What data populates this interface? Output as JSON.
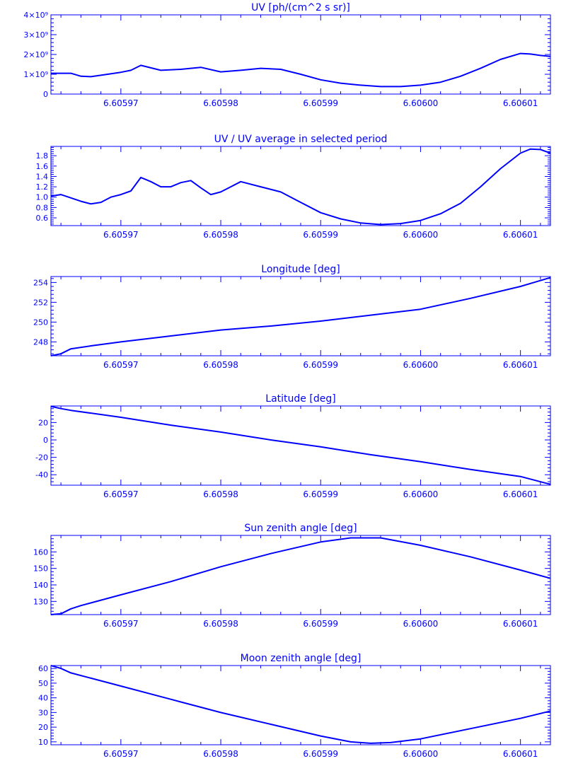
{
  "colors": {
    "line": "#0000ff",
    "background": "#ffffff"
  },
  "chart_data": [
    {
      "type": "line",
      "title": "UV [ph/(cm^2 s sr)]",
      "xlabel": "",
      "ylabel": "",
      "xlim": [
        6.605963,
        6.606013
      ],
      "ylim": [
        0,
        4.0
      ],
      "y_scale_note": "×10^9",
      "xticks": [
        6.60597,
        6.60598,
        6.60599,
        6.606,
        6.60601
      ],
      "xtick_labels": [
        "6.60597",
        "6.60598",
        "6.60599",
        "6.60600",
        "6.60601"
      ],
      "yticks": [
        0,
        1,
        2,
        3,
        4
      ],
      "ytick_labels": [
        "0",
        "1×10⁹",
        "2×10⁹",
        "3×10⁹",
        "4×10⁹"
      ],
      "series": [
        {
          "x": [
            6.605963,
            6.605965,
            6.605966,
            6.605967,
            6.605968,
            6.60597,
            6.605971,
            6.605972,
            6.605974,
            6.605976,
            6.605978,
            6.60598,
            6.605982,
            6.605984,
            6.605986,
            6.605988,
            6.60599,
            6.605992,
            6.605994,
            6.605996,
            6.605998,
            6.606,
            6.606002,
            6.606004,
            6.606006,
            6.606008,
            6.60601,
            6.606011,
            6.606012,
            6.606013
          ],
          "y": [
            1.05,
            1.05,
            0.9,
            0.88,
            0.95,
            1.1,
            1.2,
            1.45,
            1.2,
            1.25,
            1.35,
            1.12,
            1.2,
            1.3,
            1.25,
            1.0,
            0.72,
            0.55,
            0.45,
            0.38,
            0.38,
            0.45,
            0.6,
            0.9,
            1.3,
            1.75,
            2.05,
            2.02,
            1.95,
            1.9
          ]
        }
      ]
    },
    {
      "type": "line",
      "title": "UV / UV average in selected period",
      "xlabel": "",
      "ylabel": "",
      "xlim": [
        6.605963,
        6.606013
      ],
      "ylim": [
        0.45,
        1.98
      ],
      "xticks": [
        6.60597,
        6.60598,
        6.60599,
        6.606,
        6.60601
      ],
      "xtick_labels": [
        "6.60597",
        "6.60598",
        "6.60599",
        "6.60600",
        "6.60601"
      ],
      "yticks": [
        0.6,
        0.8,
        1.0,
        1.2,
        1.4,
        1.6,
        1.8
      ],
      "ytick_labels": [
        "0.6",
        "0.8",
        "1.0",
        "1.2",
        "1.4",
        "1.6",
        "1.8"
      ],
      "series": [
        {
          "x": [
            6.605963,
            6.605964,
            6.605966,
            6.605967,
            6.605968,
            6.605969,
            6.60597,
            6.605971,
            6.605972,
            6.605973,
            6.605974,
            6.605975,
            6.605976,
            6.605977,
            6.605978,
            6.605979,
            6.60598,
            6.605981,
            6.605982,
            6.605984,
            6.605986,
            6.605988,
            6.60599,
            6.605992,
            6.605994,
            6.605996,
            6.605998,
            6.606,
            6.606002,
            6.606004,
            6.606006,
            6.606008,
            6.60601,
            6.606011,
            6.606012,
            6.606013
          ],
          "y": [
            1.02,
            1.05,
            0.92,
            0.87,
            0.9,
            1.0,
            1.05,
            1.12,
            1.38,
            1.3,
            1.2,
            1.2,
            1.28,
            1.32,
            1.18,
            1.05,
            1.1,
            1.2,
            1.3,
            1.2,
            1.1,
            0.9,
            0.7,
            0.58,
            0.5,
            0.47,
            0.49,
            0.55,
            0.68,
            0.88,
            1.2,
            1.55,
            1.85,
            1.93,
            1.92,
            1.85
          ]
        }
      ]
    },
    {
      "type": "line",
      "title": "Longitude [deg]",
      "xlabel": "",
      "ylabel": "",
      "xlim": [
        6.605963,
        6.606013
      ],
      "ylim": [
        246.6,
        254.6
      ],
      "xticks": [
        6.60597,
        6.60598,
        6.60599,
        6.606,
        6.60601
      ],
      "xtick_labels": [
        "6.60597",
        "6.60598",
        "6.60599",
        "6.60600",
        "6.60601"
      ],
      "yticks": [
        248,
        250,
        252,
        254
      ],
      "ytick_labels": [
        "248",
        "250",
        "252",
        "254"
      ],
      "series": [
        {
          "x": [
            6.605963,
            6.605964,
            6.605965,
            6.605967,
            6.60597,
            6.605975,
            6.60598,
            6.605985,
            6.60599,
            6.605995,
            6.606,
            6.606005,
            6.60601,
            6.606013
          ],
          "y": [
            246.6,
            246.8,
            247.3,
            247.6,
            248.0,
            248.6,
            249.2,
            249.6,
            250.1,
            250.7,
            251.3,
            252.4,
            253.6,
            254.5
          ]
        }
      ]
    },
    {
      "type": "line",
      "title": "Latitude [deg]",
      "xlabel": "",
      "ylabel": "",
      "xlim": [
        6.605963,
        6.606013
      ],
      "ylim": [
        -52,
        39
      ],
      "xticks": [
        6.60597,
        6.60598,
        6.60599,
        6.606,
        6.60601
      ],
      "xtick_labels": [
        "6.60597",
        "6.60598",
        "6.60599",
        "6.60600",
        "6.60601"
      ],
      "yticks": [
        -40,
        -20,
        0,
        20
      ],
      "ytick_labels": [
        "-40",
        "-20",
        "0",
        "20"
      ],
      "series": [
        {
          "x": [
            6.605963,
            6.605964,
            6.605965,
            6.60597,
            6.605975,
            6.60598,
            6.605985,
            6.60599,
            6.605995,
            6.606,
            6.606005,
            6.60601,
            6.606013
          ],
          "y": [
            38.5,
            36,
            34,
            26,
            17,
            9,
            0,
            -8,
            -17,
            -25,
            -34,
            -42,
            -51
          ]
        }
      ]
    },
    {
      "type": "line",
      "title": "Sun zenith angle [deg]",
      "xlabel": "",
      "ylabel": "",
      "xlim": [
        6.605963,
        6.606013
      ],
      "ylim": [
        122,
        170
      ],
      "xticks": [
        6.60597,
        6.60598,
        6.60599,
        6.606,
        6.60601
      ],
      "xtick_labels": [
        "6.60597",
        "6.60598",
        "6.60599",
        "6.60600",
        "6.60601"
      ],
      "yticks": [
        130,
        140,
        150,
        160
      ],
      "ytick_labels": [
        "130",
        "140",
        "150",
        "160"
      ],
      "series": [
        {
          "x": [
            6.605963,
            6.605964,
            6.605965,
            6.605966,
            6.60597,
            6.605975,
            6.60598,
            6.605985,
            6.60599,
            6.605993,
            6.605996,
            6.606,
            6.606005,
            6.60601,
            6.606013
          ],
          "y": [
            122,
            122.5,
            125.5,
            127.5,
            134,
            142,
            151,
            159,
            166,
            168.5,
            168.5,
            164,
            157,
            149,
            144
          ]
        }
      ]
    },
    {
      "type": "line",
      "title": "Moon zenith angle [deg]",
      "xlabel": "",
      "ylabel": "",
      "xlim": [
        6.605963,
        6.606013
      ],
      "ylim": [
        8,
        62
      ],
      "xticks": [
        6.60597,
        6.60598,
        6.60599,
        6.606,
        6.60601
      ],
      "xtick_labels": [
        "6.60597",
        "6.60598",
        "6.60599",
        "6.60600",
        "6.60601"
      ],
      "yticks": [
        10,
        20,
        30,
        40,
        50,
        60
      ],
      "ytick_labels": [
        "10",
        "20",
        "30",
        "40",
        "50",
        "60"
      ],
      "series": [
        {
          "x": [
            6.605963,
            6.605964,
            6.605965,
            6.60597,
            6.605975,
            6.60598,
            6.605985,
            6.60599,
            6.605993,
            6.605995,
            6.605997,
            6.606,
            6.606005,
            6.60601,
            6.606013
          ],
          "y": [
            62,
            60,
            57,
            48,
            39,
            30,
            22,
            14,
            10,
            9,
            9.5,
            12,
            19,
            26,
            31
          ]
        }
      ]
    }
  ]
}
